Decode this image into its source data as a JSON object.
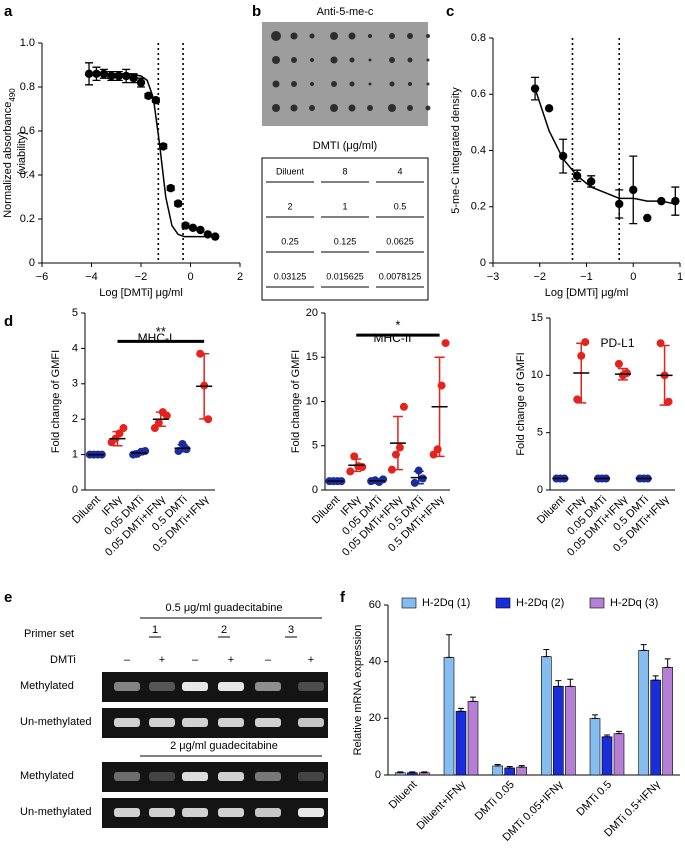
{
  "panels": [
    "a",
    "b",
    "c",
    "d",
    "e",
    "f"
  ],
  "chart_data": [
    {
      "type": "scatter",
      "xlabel": "Log [DMTi] μg/ml",
      "ylabel": {
        "text": "Normalized absorbance",
        "sub": "490",
        "line2": "(viability)"
      },
      "x": [
        -4.1,
        -3.8,
        -3.5,
        -3.2,
        -2.9,
        -2.6,
        -2.3,
        -2.0,
        -1.7,
        -1.4,
        -1.1,
        -0.8,
        -0.5,
        -0.2,
        0.1,
        0.4,
        0.7,
        1.0
      ],
      "values": [
        0.86,
        0.86,
        0.86,
        0.85,
        0.85,
        0.85,
        0.84,
        0.82,
        0.76,
        0.74,
        0.53,
        0.34,
        0.27,
        0.17,
        0.16,
        0.15,
        0.13,
        0.12
      ],
      "errors": [
        0.05,
        0.03,
        0.02,
        0.02,
        0.02,
        0.03,
        0.02,
        0.02,
        0.01,
        0.01,
        0.01,
        0.01,
        0.01,
        0.01,
        null,
        null,
        null,
        null
      ],
      "fit": {
        "x": [
          -4.2,
          -3,
          -2.5,
          -2,
          -1.75,
          -1.5,
          -1.25,
          -1,
          -0.75,
          -0.5,
          -0.25,
          0,
          0.5,
          1
        ],
        "values": [
          0.86,
          0.86,
          0.86,
          0.85,
          0.83,
          0.75,
          0.54,
          0.3,
          0.17,
          0.13,
          0.12,
          0.12,
          0.12,
          0.12
        ]
      },
      "vlines": [
        -1.3,
        -0.3
      ],
      "color": "#000000",
      "xlim": [
        -6,
        2
      ],
      "xticks": [
        {
          "value": -6,
          "label": "−6"
        },
        {
          "value": -4,
          "label": "−4"
        },
        {
          "value": -2,
          "label": "−2"
        },
        0,
        2
      ],
      "ylim": [
        0,
        1
      ],
      "yticks": [
        0,
        0.2,
        0.4,
        0.6,
        0.8,
        {
          "value": 1,
          "label": "1.0"
        }
      ]
    },
    {
      "type": "scatter",
      "xlabel": "Log [DMTi] μg/ml",
      "ylabel": "5-me-C integrated density",
      "x": [
        -2.1,
        -1.8,
        -1.5,
        -1.2,
        -0.9,
        -0.3,
        0.0,
        0.3,
        0.6,
        0.9
      ],
      "values": [
        0.62,
        0.55,
        0.38,
        0.31,
        0.29,
        0.21,
        0.26,
        0.16,
        0.22,
        0.22
      ],
      "errors": [
        0.04,
        null,
        0.06,
        0.02,
        0.02,
        0.05,
        0.12,
        null,
        null,
        0.05
      ],
      "fit": {
        "x": [
          -2.1,
          -1.8,
          -1.5,
          -1.2,
          -0.9,
          -0.6,
          -0.3,
          0,
          0.3,
          0.6,
          0.9
        ],
        "values": [
          0.62,
          0.47,
          0.37,
          0.31,
          0.27,
          0.25,
          0.23,
          0.23,
          0.22,
          0.22,
          0.21
        ]
      },
      "vlines": [
        -1.3,
        -0.3
      ],
      "color": "#000000",
      "xlim": [
        -3,
        1
      ],
      "xticks": [
        {
          "value": -3,
          "label": "−3"
        },
        {
          "value": -2,
          "label": "−2"
        },
        {
          "value": -1,
          "label": "−1"
        },
        0,
        1
      ],
      "ylim": [
        0,
        0.8
      ],
      "yticks": [
        0,
        0.2,
        0.4,
        0.6,
        0.8
      ]
    },
    {
      "type": "dot",
      "title": "MHC-I",
      "ylabel": "Fold change of GMFI",
      "categories": [
        "Diluent",
        "IFNγ",
        "0.05 DMTi",
        "0.05 DMTi+IFNγ",
        "0.5 DMTi",
        "0.5 DMTi+IFNγ"
      ],
      "groups": [
        {
          "color": "#1b2a9c",
          "values": [
            1,
            1,
            1,
            1
          ],
          "mean": 1
        },
        {
          "color": "#e3231c",
          "values": [
            1.35,
            1.45,
            1.6,
            1.75
          ],
          "mean": 1.45,
          "error": 0.2
        },
        {
          "color": "#1b2a9c",
          "values": [
            1.0,
            1.02,
            1.08,
            1.1
          ],
          "mean": 1.05,
          "error": 0.05
        },
        {
          "color": "#e3231c",
          "values": [
            1.75,
            1.9,
            2.2,
            2.1
          ],
          "mean": 2.0,
          "error": 0.2
        },
        {
          "color": "#1b2a9c",
          "values": [
            1.1,
            1.3,
            1.15
          ],
          "mean": 1.18,
          "error": 0.1
        },
        {
          "color": "#e3231c",
          "values": [
            3.85,
            2.95,
            2.0
          ],
          "mean": 2.93,
          "error": 0.92
        }
      ],
      "significance": {
        "label": "**",
        "value": 4.2
      },
      "ylim": [
        0,
        5
      ],
      "yticks": [
        0,
        1,
        2,
        3,
        4,
        5
      ]
    },
    {
      "type": "dot",
      "title": "MHC-II",
      "ylabel": "Fold change of GMFI",
      "categories": [
        "Diluent",
        "IFNγ",
        "0.05 DMTi",
        "0.05 DMTi+IFNγ",
        "0.5 DMTi",
        "0.5 DMTi+IFNγ"
      ],
      "groups": [
        {
          "color": "#1b2a9c",
          "values": [
            1,
            1,
            1,
            1
          ],
          "mean": 1
        },
        {
          "color": "#e3231c",
          "values": [
            2.1,
            3.8,
            2.7,
            2.6
          ],
          "mean": 2.8,
          "error": 0.7
        },
        {
          "color": "#1b2a9c",
          "values": [
            1,
            1.1,
            0.9,
            1.2
          ],
          "mean": 1.05,
          "error": 0.1
        },
        {
          "color": "#e3231c",
          "values": [
            2.3,
            4.0,
            4.8,
            9.4
          ],
          "mean": 5.3,
          "error": 3.0
        },
        {
          "color": "#1b2a9c",
          "values": [
            0.8,
            2.2,
            1.3
          ],
          "mean": 1.4,
          "error": 0.7
        },
        {
          "color": "#e3231c",
          "values": [
            4.0,
            4.6,
            11.8,
            16.6
          ],
          "mean": 9.4,
          "error": 5.6
        }
      ],
      "significance": {
        "label": "*",
        "value": 17.5
      },
      "ylim": [
        0,
        20
      ],
      "yticks": [
        0,
        5,
        10,
        15,
        20
      ]
    },
    {
      "type": "dot",
      "title": "PD-L1",
      "ylabel": "Fold change of GMFI",
      "categories": [
        "Diluent",
        "IFNγ",
        "0.05 DMTi",
        "0.05 DMTi+IFNγ",
        "0.5 DMTi",
        "0.5 DMTi+IFNγ"
      ],
      "groups": [
        {
          "color": "#1b2a9c",
          "values": [
            1,
            1,
            1
          ],
          "mean": 1
        },
        {
          "color": "#e3231c",
          "values": [
            7.9,
            11.7,
            12.9
          ],
          "mean": 10.2,
          "error": 2.6
        },
        {
          "color": "#1b2a9c",
          "values": [
            1,
            1,
            1
          ],
          "mean": 1
        },
        {
          "color": "#e3231c",
          "values": [
            11.0,
            10.0,
            10.2
          ],
          "mean": 10.1,
          "error": 0.5
        },
        {
          "color": "#1b2a9c",
          "values": [
            1,
            1,
            1
          ],
          "mean": 1
        },
        {
          "color": "#e3231c",
          "values": [
            12.8,
            10.0,
            7.7
          ],
          "mean": 10.0,
          "error": 2.6
        }
      ],
      "ylim": [
        0,
        15
      ],
      "yticks": [
        0,
        5,
        10,
        15
      ]
    },
    {
      "type": "bar",
      "ylabel": "Relative mRNA expression",
      "legend": "top",
      "categories": [
        "Diluent",
        "Diluent+IFNγ",
        "DMTi 0.05",
        "DMTi 0.05+IFNγ",
        "DMTi 0.5",
        "DMTi 0.5+IFNγ"
      ],
      "series": [
        {
          "name": "H-2Dq (1)",
          "color": "#86bdf0",
          "values": [
            0.8,
            41.5,
            3.2,
            41.8,
            20,
            44
          ],
          "errors": [
            0.3,
            8,
            0.5,
            2.5,
            1.2,
            2
          ]
        },
        {
          "name": "H-2Dq (2)",
          "color": "#1a2ddb",
          "values": [
            0.8,
            22.5,
            2.5,
            31.3,
            13.5,
            33.5
          ],
          "errors": [
            0.3,
            1,
            0.5,
            2,
            0.6,
            1.5
          ]
        },
        {
          "name": "H-2Dq (3)",
          "color": "#b57fd6",
          "values": [
            0.8,
            26,
            2.8,
            31.3,
            14.6,
            38
          ],
          "errors": [
            0.3,
            1.5,
            0.5,
            2.5,
            0.8,
            3
          ]
        }
      ],
      "ylim": [
        0,
        60
      ],
      "yticks": [
        0,
        20,
        40,
        60
      ]
    }
  ],
  "dot_blot": {
    "title": "Anti-5-me-c",
    "table_title": "DMTI (μg/ml)",
    "rows": [
      [
        "Diluent",
        "8",
        "4"
      ],
      [
        "2",
        "1",
        "0.5"
      ],
      [
        "0.25",
        "0.125",
        "0.0625"
      ],
      [
        "0.03125",
        "0.015625",
        "0.0078125"
      ]
    ]
  },
  "gel": {
    "primer_label": "Primer set",
    "primer_sets": [
      "1",
      "2",
      "3"
    ],
    "conditions": [
      "0.5 μg/ml guadecitabine",
      "2 μg/ml guadecitabine"
    ],
    "treatment_label": "DMTi",
    "lanes": [
      "–",
      "+",
      "–",
      "+",
      "–",
      "+"
    ],
    "rows": [
      "Methylated",
      "Un-methylated"
    ]
  }
}
